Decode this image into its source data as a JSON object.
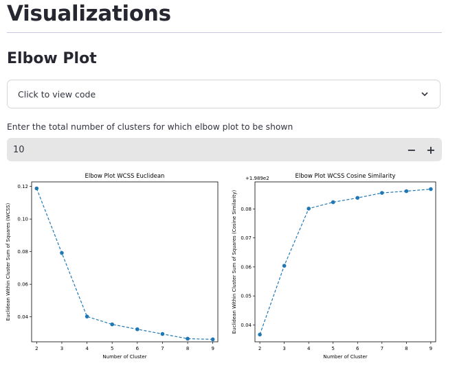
{
  "page": {
    "title": "Visualizations",
    "section_title": "Elbow Plot",
    "expander_label": "Click to view code",
    "input_prompt": "Enter the total number of clusters for which elbow plot to be shown",
    "input_value": "10",
    "minus_label": "−",
    "plus_label": "+"
  },
  "chart_data": [
    {
      "type": "line",
      "title": "Elbow Plot WCSS Euclidean",
      "xlabel": "Number of Cluster",
      "ylabel": "Euclidean Within Cluster Sum of Squares (WCSS)",
      "x": [
        2,
        3,
        4,
        5,
        6,
        7,
        8,
        9
      ],
      "y": [
        0.1188,
        0.0792,
        0.0402,
        0.0354,
        0.0324,
        0.0295,
        0.0266,
        0.0262
      ],
      "xlim": [
        1.8,
        9.2
      ],
      "ylim": [
        0.0247,
        0.1228
      ],
      "xticks": [
        "2",
        "3",
        "4",
        "5",
        "6",
        "7",
        "8",
        "9"
      ],
      "yticks": [
        0.04,
        0.06,
        0.08,
        0.1,
        0.12
      ],
      "ytick_labels": [
        "0.04",
        "0.06",
        "0.08",
        "0.10",
        "0.12"
      ],
      "offset_label": "",
      "line_style": "dashed with dot markers",
      "color": "#1f77b4"
    },
    {
      "type": "line",
      "title": "Elbow Plot WCSS Cosine Similarity",
      "xlabel": "Number of Cluster",
      "ylabel": "Euclidean Within Cluster Sum of Squares (Cosine Similarity)",
      "x": [
        2,
        3,
        4,
        5,
        6,
        7,
        8,
        9
      ],
      "y": [
        0.0367,
        0.0604,
        0.0801,
        0.0823,
        0.0838,
        0.0855,
        0.0861,
        0.0868
      ],
      "xlim": [
        1.8,
        9.2
      ],
      "ylim": [
        0.0342,
        0.0893
      ],
      "xticks": [
        "2",
        "3",
        "4",
        "5",
        "6",
        "7",
        "8",
        "9"
      ],
      "yticks": [
        0.04,
        0.05,
        0.06,
        0.07,
        0.08
      ],
      "ytick_labels": [
        "0.04",
        "0.05",
        "0.06",
        "0.07",
        "0.08"
      ],
      "offset_label": "+1.989e2",
      "line_style": "dashed with dot markers",
      "color": "#1f77b4"
    }
  ]
}
